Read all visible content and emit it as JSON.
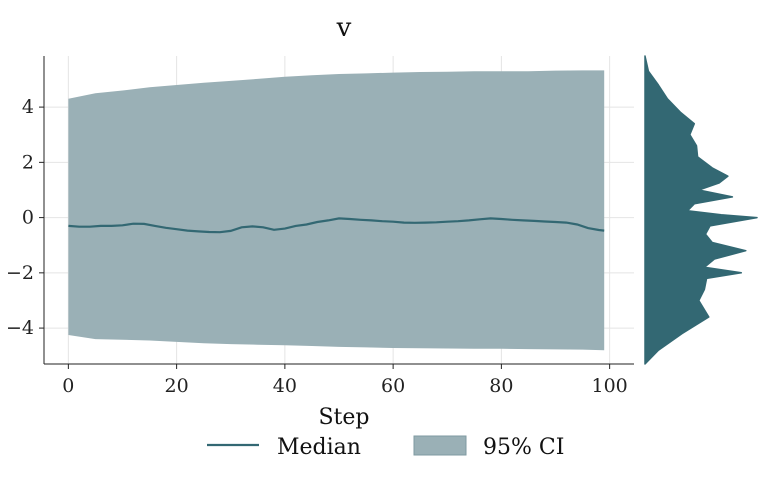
{
  "chart_data": {
    "type": "area",
    "title": "v",
    "xlabel": "Step",
    "ylabel": "",
    "xlim": [
      -4.5,
      104.5
    ],
    "ylim": [
      -5.3,
      5.85
    ],
    "xticks": [
      0,
      20,
      40,
      60,
      80,
      100
    ],
    "yticks": [
      -4,
      -2,
      0,
      2,
      4
    ],
    "grid": true,
    "legend": {
      "placement": "bottom-center"
    },
    "colors": {
      "line": "#336873",
      "band": "#9ab0b6",
      "density": "#336873"
    },
    "series": [
      {
        "name": "Median",
        "kind": "line",
        "x": [
          0,
          2,
          4,
          6,
          8,
          10,
          12,
          14,
          16,
          18,
          20,
          22,
          24,
          26,
          28,
          30,
          32,
          34,
          36,
          38,
          40,
          42,
          44,
          46,
          48,
          50,
          52,
          54,
          56,
          58,
          60,
          62,
          64,
          66,
          68,
          70,
          72,
          74,
          76,
          78,
          80,
          82,
          84,
          86,
          88,
          90,
          92,
          94,
          96,
          98,
          99
        ],
        "y": [
          -0.3,
          -0.33,
          -0.33,
          -0.3,
          -0.3,
          -0.28,
          -0.22,
          -0.23,
          -0.3,
          -0.37,
          -0.42,
          -0.47,
          -0.5,
          -0.52,
          -0.53,
          -0.48,
          -0.35,
          -0.32,
          -0.35,
          -0.44,
          -0.4,
          -0.3,
          -0.25,
          -0.16,
          -0.1,
          -0.03,
          -0.05,
          -0.08,
          -0.1,
          -0.13,
          -0.15,
          -0.18,
          -0.19,
          -0.18,
          -0.17,
          -0.15,
          -0.13,
          -0.1,
          -0.06,
          -0.03,
          -0.05,
          -0.08,
          -0.1,
          -0.12,
          -0.14,
          -0.16,
          -0.18,
          -0.25,
          -0.38,
          -0.45,
          -0.47
        ]
      },
      {
        "name": "95% CI",
        "kind": "band",
        "x": [
          0,
          5,
          10,
          15,
          20,
          25,
          30,
          35,
          40,
          45,
          50,
          55,
          60,
          65,
          70,
          75,
          80,
          85,
          90,
          95,
          99
        ],
        "upper": [
          4.3,
          4.5,
          4.6,
          4.72,
          4.8,
          4.88,
          4.95,
          5.02,
          5.1,
          5.15,
          5.2,
          5.22,
          5.25,
          5.27,
          5.28,
          5.3,
          5.3,
          5.3,
          5.32,
          5.33,
          5.33
        ],
        "lower": [
          -4.25,
          -4.4,
          -4.42,
          -4.45,
          -4.5,
          -4.55,
          -4.58,
          -4.6,
          -4.62,
          -4.65,
          -4.68,
          -4.7,
          -4.72,
          -4.73,
          -4.74,
          -4.75,
          -4.75,
          -4.76,
          -4.77,
          -4.78,
          -4.8
        ]
      }
    ],
    "marginal_density": {
      "y": [
        -5.3,
        -4.8,
        -4.2,
        -3.6,
        -3.0,
        -2.6,
        -2.2,
        -2.0,
        -1.8,
        -1.5,
        -1.2,
        -0.9,
        -0.6,
        -0.3,
        0.0,
        0.1,
        0.25,
        0.5,
        0.75,
        1.0,
        1.25,
        1.5,
        1.8,
        2.2,
        2.6,
        3.0,
        3.4,
        3.8,
        4.3,
        4.8,
        5.3,
        5.85
      ],
      "density": [
        0.0,
        0.12,
        0.33,
        0.57,
        0.48,
        0.53,
        0.55,
        0.86,
        0.53,
        0.62,
        0.9,
        0.6,
        0.54,
        0.58,
        1.0,
        0.68,
        0.38,
        0.44,
        0.78,
        0.48,
        0.66,
        0.74,
        0.6,
        0.47,
        0.46,
        0.4,
        0.44,
        0.32,
        0.2,
        0.12,
        0.03,
        0.0
      ]
    }
  }
}
